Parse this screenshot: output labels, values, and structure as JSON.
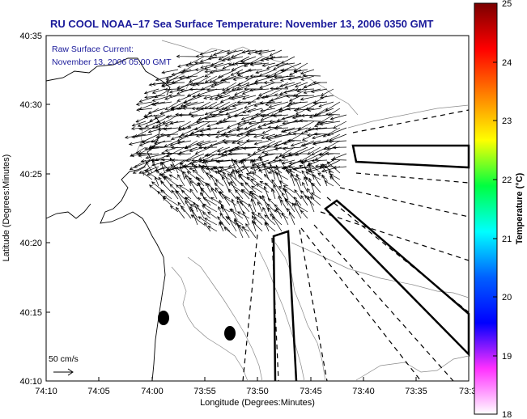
{
  "title": "RU COOL  NOAA–17  Sea Surface Temperature:  November 13, 2006 0350 GMT",
  "annotation": {
    "line1": "Raw Surface Current:",
    "line2": "November 13, 2006 05:00 GMT"
  },
  "scale_label": "50 cm/s",
  "x_axis": {
    "label": "Longitude (Degrees:Minutes)",
    "ticks": [
      "74:10",
      "74:05",
      "74:00",
      "73:55",
      "73:50",
      "73:45",
      "73:40",
      "73:35",
      "73:3"
    ]
  },
  "y_axis": {
    "label": "Latitude (Degrees:Minutes)",
    "ticks": [
      "40:35",
      "40:30",
      "40:25",
      "40:20",
      "40:15",
      "40:10"
    ]
  },
  "colorbar": {
    "label": "Temperature (°C)",
    "ticks": [
      "25",
      "24",
      "23",
      "22",
      "21",
      "20",
      "19",
      "18"
    ],
    "colors": [
      "#7a0000",
      "#ff0000",
      "#ff8000",
      "#ffff00",
      "#00ff40",
      "#00ffff",
      "#0060ff",
      "#0000ff",
      "#ff30ff",
      "#ffffff"
    ]
  }
}
